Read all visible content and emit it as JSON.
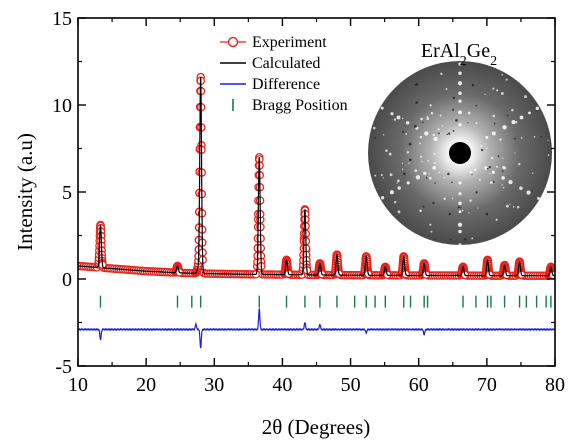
{
  "chart_data": {
    "type": "line",
    "xlabel": "2θ (Degrees)",
    "ylabel": "Intensity (a.u)",
    "xlim": [
      10,
      80
    ],
    "ylim": [
      -5,
      15
    ],
    "x_ticks": [
      10,
      20,
      30,
      40,
      50,
      60,
      70,
      80
    ],
    "y_ticks": [
      -5,
      0,
      5,
      10,
      15
    ],
    "grid": false,
    "legend_position": "top-center",
    "inset": {
      "title_parts": [
        {
          "text": "ErAl",
          "kind": "normal"
        },
        {
          "text": "2",
          "kind": "sub"
        },
        {
          "text": "Ge",
          "kind": "normal"
        },
        {
          "text": "2",
          "kind": "sub"
        }
      ],
      "description": "Laue back-reflection diffraction pattern"
    },
    "baseline": {
      "x": [
        10,
        15,
        20,
        25,
        30,
        35,
        40,
        45,
        50,
        55,
        60,
        65,
        70,
        75,
        80
      ],
      "y": [
        0.75,
        0.6,
        0.45,
        0.35,
        0.3,
        0.27,
        0.25,
        0.23,
        0.22,
        0.21,
        0.2,
        0.2,
        0.19,
        0.19,
        0.19
      ]
    },
    "peaks": [
      {
        "x": 13.3,
        "y": 3.1
      },
      {
        "x": 24.6,
        "y": 0.75
      },
      {
        "x": 27.6,
        "y": 0.6
      },
      {
        "x": 28.0,
        "y": 11.6
      },
      {
        "x": 36.6,
        "y": 7.0
      },
      {
        "x": 40.6,
        "y": 1.1
      },
      {
        "x": 43.3,
        "y": 4.0
      },
      {
        "x": 45.5,
        "y": 0.9
      },
      {
        "x": 48.0,
        "y": 1.4
      },
      {
        "x": 52.3,
        "y": 1.3
      },
      {
        "x": 55.1,
        "y": 0.7
      },
      {
        "x": 57.8,
        "y": 1.3
      },
      {
        "x": 60.8,
        "y": 0.9
      },
      {
        "x": 66.5,
        "y": 0.7
      },
      {
        "x": 70.1,
        "y": 1.1
      },
      {
        "x": 72.6,
        "y": 0.8
      },
      {
        "x": 74.8,
        "y": 1.0
      },
      {
        "x": 79.4,
        "y": 0.7
      }
    ],
    "bragg_positions": {
      "y": -1.3,
      "x": [
        13.3,
        24.6,
        26.7,
        28.0,
        36.6,
        40.6,
        43.3,
        45.5,
        48.0,
        50.6,
        52.3,
        53.6,
        55.1,
        57.8,
        58.8,
        60.8,
        61.3,
        66.5,
        68.4,
        70.1,
        70.6,
        72.6,
        74.8,
        75.8,
        77.3,
        78.7,
        79.4
      ]
    },
    "difference_curve": {
      "offset": -2.9,
      "features": [
        {
          "x": 13.3,
          "y": -0.6
        },
        {
          "x": 27.3,
          "y": 0.3
        },
        {
          "x": 28.0,
          "y": -1.1
        },
        {
          "x": 36.6,
          "y": 1.2
        },
        {
          "x": 43.3,
          "y": 0.4
        },
        {
          "x": 45.5,
          "y": 0.3
        },
        {
          "x": 52.3,
          "y": -0.2
        },
        {
          "x": 60.8,
          "y": -0.3
        }
      ]
    },
    "series": [
      {
        "name": "Experiment",
        "style": "open-circles",
        "color": "#e8251f"
      },
      {
        "name": "Calculated",
        "style": "line",
        "color": "#000000"
      },
      {
        "name": "Difference",
        "style": "line",
        "color": "#1f1fd6"
      },
      {
        "name": "Bragg Position",
        "style": "ticks",
        "color": "#1a7a4a"
      }
    ]
  }
}
